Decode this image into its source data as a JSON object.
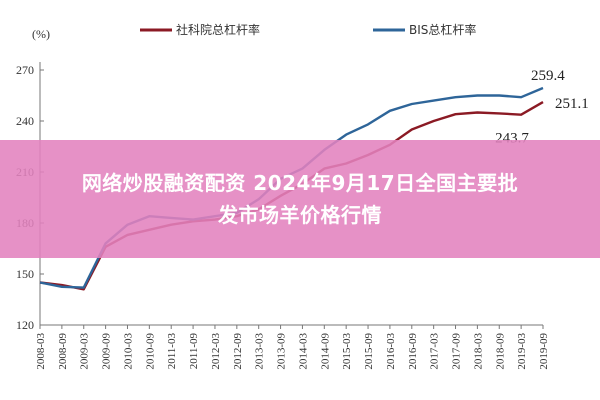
{
  "banner": {
    "line1": "网络炒股融资配资 2024年9月17日全国主要批",
    "line2": "发市场羊价格行情"
  },
  "colors": {
    "series1": "#8b1a24",
    "series2": "#2e6599",
    "banner": "#e282be"
  },
  "chart_data": {
    "type": "line",
    "title": "",
    "xlabel": "",
    "ylabel": "(%)",
    "ylim": [
      120,
      270
    ],
    "yticks": [
      120,
      150,
      180,
      210,
      240,
      270
    ],
    "grid": false,
    "legend_position": "top",
    "x": [
      "2008-03",
      "2008-09",
      "2009-03",
      "2009-09",
      "2010-03",
      "2010-09",
      "2011-03",
      "2011-09",
      "2012-03",
      "2012-09",
      "2013-03",
      "2013-09",
      "2014-03",
      "2014-09",
      "2015-03",
      "2015-09",
      "2016-03",
      "2016-09",
      "2017-03",
      "2017-09",
      "2018-03",
      "2018-09",
      "2019-03",
      "2019-09"
    ],
    "series": [
      {
        "name": "社科院总杠杆率",
        "values": [
          145,
          143.5,
          141,
          166,
          173,
          176,
          179,
          181,
          182,
          184,
          188,
          196,
          203,
          212,
          215,
          220,
          226,
          235,
          240,
          244,
          245,
          244.5,
          243.7,
          251.1
        ]
      },
      {
        "name": "BIS总杠杆率",
        "values": [
          145,
          142.5,
          142,
          168,
          179,
          184,
          183,
          182,
          184,
          186,
          194,
          206,
          212,
          223,
          232,
          238,
          246,
          250,
          252,
          254,
          255,
          255,
          254,
          259.4
        ]
      }
    ],
    "annotations": [
      {
        "text": "259.4",
        "series": "BIS总杠杆率",
        "x": "2019-09",
        "y": 259.4
      },
      {
        "text": "251.1",
        "series": "社科院总杠杆率",
        "x": "2019-09",
        "y": 251.1
      },
      {
        "text": "243.7",
        "series": "社科院总杠杆率",
        "x": "2019-03",
        "y": 243.7
      }
    ]
  }
}
